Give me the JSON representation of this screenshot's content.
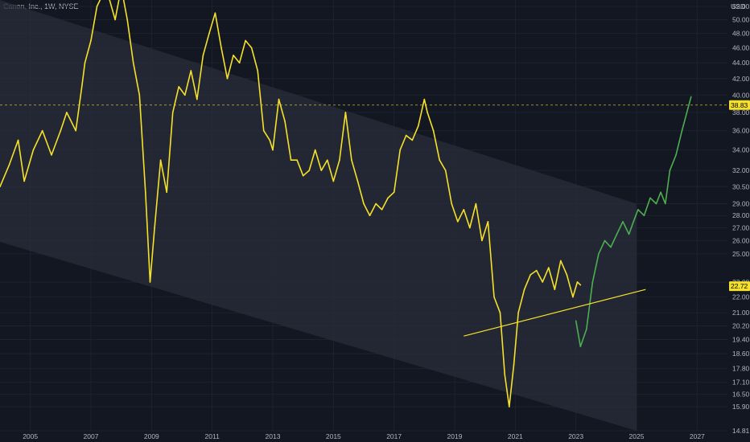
{
  "header": {
    "symbol": "Canon, Inc., 1W, NYSE",
    "currency": "USD"
  },
  "colors": {
    "background": "#131722",
    "price_line": "#f5e12a",
    "projection_line": "#4caf50",
    "trendline": "#f5e12a",
    "channel_fill": "#2a2e39",
    "grid": "#1e222d",
    "current_price_badge": "#f5e12a",
    "horizontal_line": "#f5e12a"
  },
  "chart_data": {
    "type": "line",
    "title": "Canon, Inc., 1W, NYSE",
    "xlabel": "",
    "ylabel": "",
    "y_scale": "log",
    "xlim": [
      2004.0,
      2028.0
    ],
    "ylim": [
      14.81,
      53.0
    ],
    "grid": true,
    "x_ticks": [
      "2005",
      "2007",
      "2009",
      "2011",
      "2013",
      "2015",
      "2017",
      "2019",
      "2021",
      "2023",
      "2025",
      "2027"
    ],
    "y_ticks": [
      14.81,
      15.9,
      16.5,
      17.1,
      17.8,
      18.6,
      19.4,
      20.2,
      21.0,
      22.0,
      23.0,
      25.0,
      26.0,
      27.0,
      28.0,
      29.0,
      30.5,
      32.0,
      34.0,
      36.0,
      38.0,
      40.0,
      42.0,
      44.0,
      46.0,
      48.0,
      50.0,
      52.0
    ],
    "price_labels": {
      "horizontal_level": "38.83",
      "current": "22.72"
    },
    "series": [
      {
        "style": "solid",
        "points": [
          [
            2004.0,
            30.5
          ],
          [
            2004.3,
            32.5
          ],
          [
            2004.6,
            35.0
          ],
          [
            2004.8,
            31.0
          ],
          [
            2005.1,
            34.0
          ],
          [
            2005.4,
            36.0
          ],
          [
            2005.7,
            33.5
          ],
          [
            2006.0,
            36.0
          ],
          [
            2006.2,
            38.0
          ],
          [
            2006.5,
            36.0
          ],
          [
            2006.7,
            41.0
          ],
          [
            2006.8,
            44.0
          ],
          [
            2007.0,
            47.0
          ],
          [
            2007.2,
            52.0
          ],
          [
            2007.5,
            55.0
          ],
          [
            2007.8,
            50.0
          ],
          [
            2008.0,
            55.0
          ],
          [
            2008.2,
            50.0
          ],
          [
            2008.4,
            44.0
          ],
          [
            2008.6,
            40.0
          ],
          [
            2008.8,
            30.0
          ],
          [
            2008.95,
            23.0
          ],
          [
            2009.1,
            27.0
          ],
          [
            2009.3,
            33.0
          ],
          [
            2009.5,
            30.0
          ],
          [
            2009.7,
            38.0
          ],
          [
            2009.9,
            41.0
          ],
          [
            2010.1,
            40.0
          ],
          [
            2010.3,
            43.0
          ],
          [
            2010.5,
            39.5
          ],
          [
            2010.7,
            45.0
          ],
          [
            2010.9,
            48.0
          ],
          [
            2011.1,
            51.0
          ],
          [
            2011.3,
            46.0
          ],
          [
            2011.5,
            42.0
          ],
          [
            2011.7,
            45.0
          ],
          [
            2011.9,
            44.0
          ],
          [
            2012.1,
            47.0
          ],
          [
            2012.3,
            46.0
          ],
          [
            2012.5,
            43.0
          ],
          [
            2012.7,
            36.0
          ],
          [
            2012.9,
            35.0
          ],
          [
            2013.0,
            34.0
          ],
          [
            2013.2,
            39.5
          ],
          [
            2013.4,
            37.0
          ],
          [
            2013.6,
            33.0
          ],
          [
            2013.8,
            33.0
          ],
          [
            2014.0,
            31.5
          ],
          [
            2014.2,
            32.0
          ],
          [
            2014.4,
            34.0
          ],
          [
            2014.6,
            32.0
          ],
          [
            2014.8,
            33.0
          ],
          [
            2015.0,
            31.0
          ],
          [
            2015.2,
            33.0
          ],
          [
            2015.4,
            38.0
          ],
          [
            2015.6,
            33.0
          ],
          [
            2015.8,
            31.0
          ],
          [
            2016.0,
            29.0
          ],
          [
            2016.2,
            28.0
          ],
          [
            2016.4,
            29.0
          ],
          [
            2016.6,
            28.5
          ],
          [
            2016.8,
            29.5
          ],
          [
            2017.0,
            30.0
          ],
          [
            2017.2,
            34.0
          ],
          [
            2017.4,
            35.5
          ],
          [
            2017.6,
            35.0
          ],
          [
            2017.8,
            36.5
          ],
          [
            2018.0,
            39.5
          ],
          [
            2018.1,
            38.0
          ],
          [
            2018.3,
            36.0
          ],
          [
            2018.5,
            33.0
          ],
          [
            2018.7,
            32.0
          ],
          [
            2018.9,
            29.0
          ],
          [
            2019.1,
            27.5
          ],
          [
            2019.3,
            28.5
          ],
          [
            2019.5,
            27.0
          ],
          [
            2019.7,
            29.0
          ],
          [
            2019.9,
            26.0
          ],
          [
            2020.1,
            27.5
          ],
          [
            2020.3,
            22.0
          ],
          [
            2020.5,
            21.0
          ],
          [
            2020.65,
            17.5
          ],
          [
            2020.8,
            15.9
          ],
          [
            2020.95,
            18.0
          ],
          [
            2021.1,
            21.0
          ],
          [
            2021.3,
            22.5
          ],
          [
            2021.5,
            23.5
          ],
          [
            2021.7,
            23.8
          ],
          [
            2021.9,
            23.0
          ],
          [
            2022.1,
            24.0
          ],
          [
            2022.3,
            22.5
          ],
          [
            2022.5,
            24.5
          ],
          [
            2022.7,
            23.5
          ],
          [
            2022.9,
            22.0
          ],
          [
            2023.05,
            23.0
          ],
          [
            2023.15,
            22.8
          ]
        ]
      },
      {
        "style": "projection",
        "points": [
          [
            2023.0,
            20.5
          ],
          [
            2023.15,
            19.0
          ],
          [
            2023.35,
            20.0
          ],
          [
            2023.55,
            23.0
          ],
          [
            2023.75,
            25.0
          ],
          [
            2023.95,
            26.0
          ],
          [
            2024.15,
            25.5
          ],
          [
            2024.35,
            26.5
          ],
          [
            2024.55,
            27.5
          ],
          [
            2024.75,
            26.5
          ],
          [
            2024.9,
            27.5
          ],
          [
            2025.05,
            28.5
          ],
          [
            2025.25,
            28.0
          ],
          [
            2025.45,
            29.5
          ],
          [
            2025.65,
            29.0
          ],
          [
            2025.8,
            30.0
          ],
          [
            2025.95,
            29.0
          ],
          [
            2026.1,
            32.0
          ],
          [
            2026.3,
            33.5
          ],
          [
            2026.5,
            36.0
          ],
          [
            2026.7,
            38.5
          ],
          [
            2026.8,
            39.8
          ]
        ]
      }
    ],
    "annotations": {
      "channel": {
        "upper": [
          [
            2004.0,
            53.0
          ],
          [
            2025.0,
            29.0
          ]
        ],
        "lower": [
          [
            2004.0,
            25.9
          ],
          [
            2025.0,
            14.81
          ]
        ]
      },
      "trendline": [
        [
          2019.3,
          19.6
        ],
        [
          2025.3,
          22.5
        ]
      ],
      "horizontal_level": 38.83
    }
  }
}
